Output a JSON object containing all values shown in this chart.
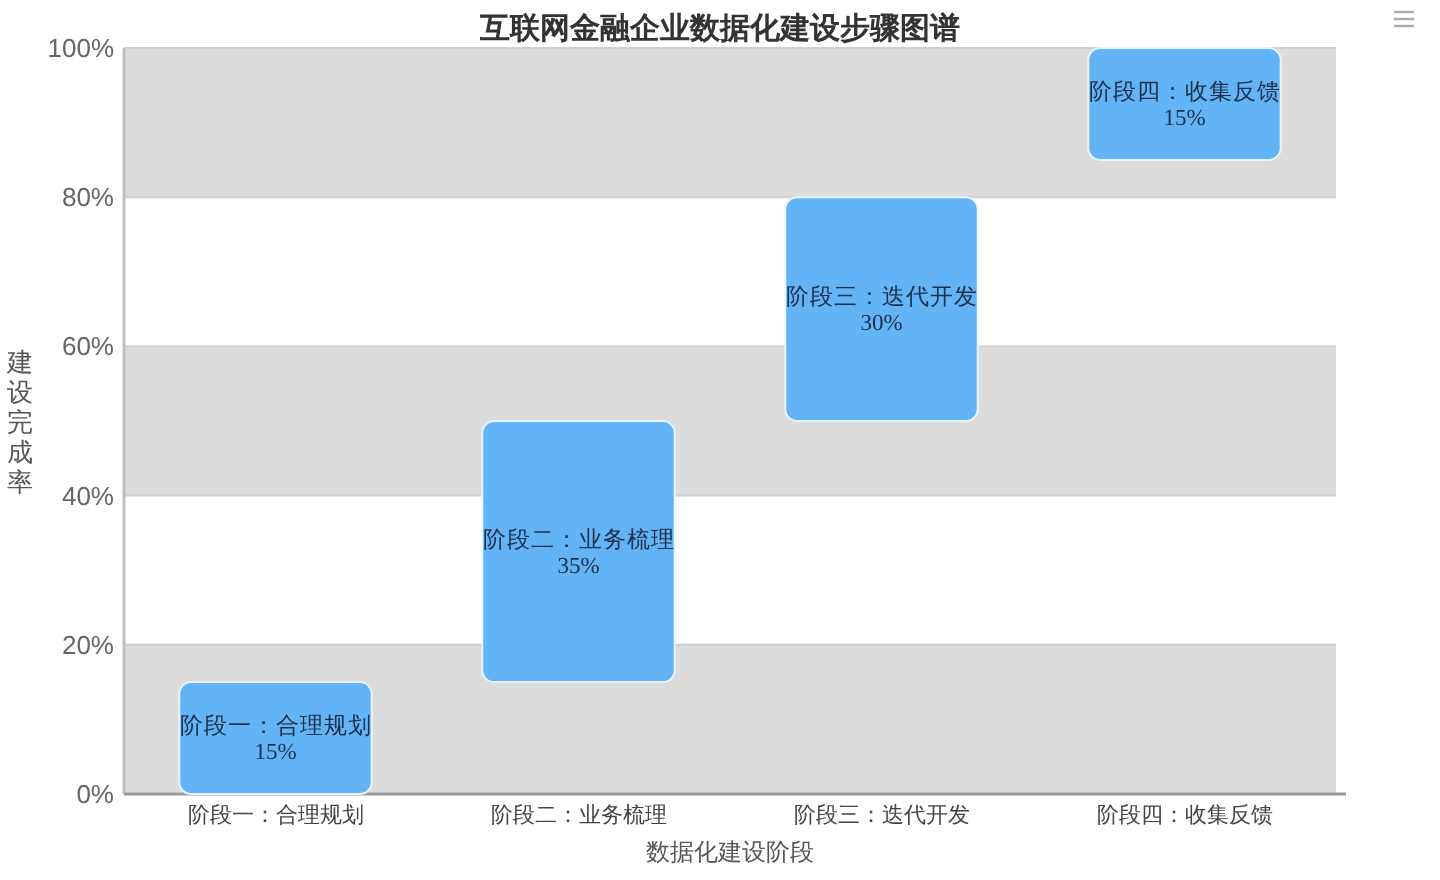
{
  "chart_data": {
    "type": "bar",
    "title": "互联网金融企业数据化建设步骤图谱",
    "xlabel": "数据化建设阶段",
    "ylabel": "建设完成率",
    "categories": [
      "阶段一：合理规划",
      "阶段二：业务梳理",
      "阶段三：迭代开发",
      "阶段四：收集反馈"
    ],
    "values": [
      15,
      35,
      30,
      15
    ],
    "base": [
      0,
      15,
      50,
      85
    ],
    "color": "#62b4f6",
    "value_labels": [
      "15%",
      "35%",
      "30%",
      "15%"
    ],
    "ylim": [
      0,
      100
    ],
    "yticks": [
      {
        "value": 0,
        "label": "0%"
      },
      {
        "value": 20,
        "label": "20%"
      },
      {
        "value": 40,
        "label": "40%"
      },
      {
        "value": 60,
        "label": "60%"
      },
      {
        "value": 80,
        "label": "80%"
      },
      {
        "value": 100,
        "label": "100%"
      }
    ],
    "bands": [
      {
        "axis": "y",
        "from": 0,
        "to": 20,
        "color": "#dcdcdc"
      },
      {
        "axis": "y",
        "from": 40,
        "to": 60,
        "color": "#dcdcdc"
      },
      {
        "axis": "y",
        "from": 80,
        "to": 100,
        "color": "#dcdcdc"
      }
    ],
    "grid": "y"
  }
}
